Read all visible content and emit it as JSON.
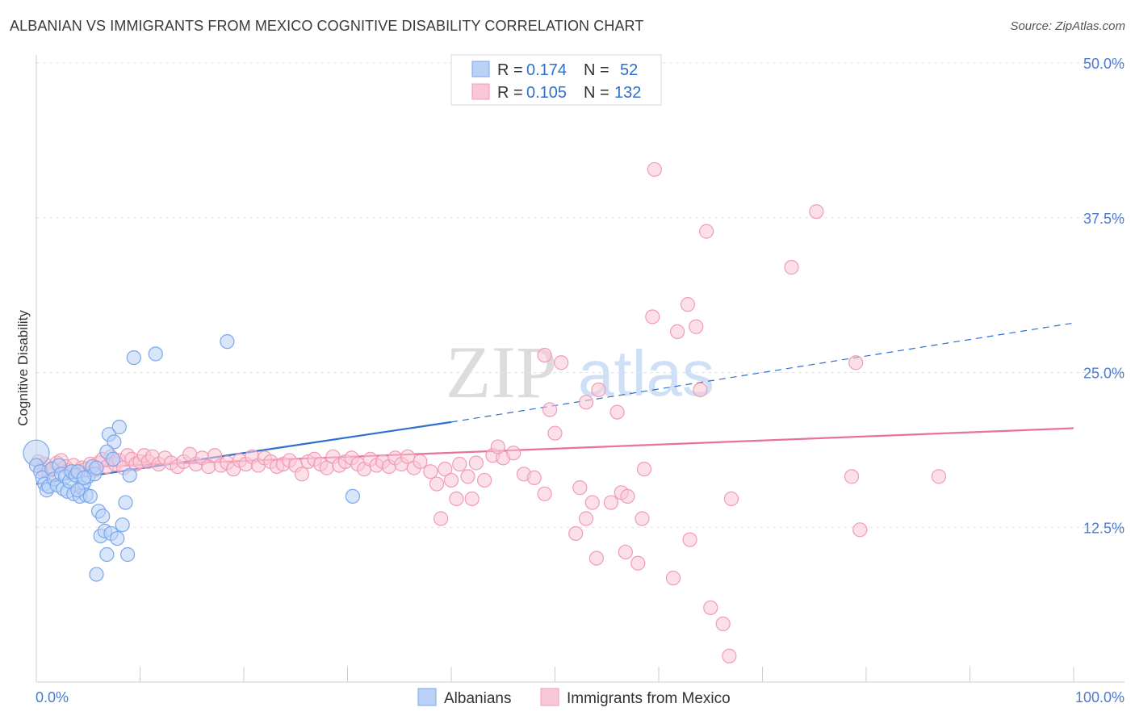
{
  "title": "ALBANIAN VS IMMIGRANTS FROM MEXICO COGNITIVE DISABILITY CORRELATION CHART",
  "source": "Source: ZipAtlas.com",
  "watermark": {
    "zip": "ZIP",
    "atlas": "atlas"
  },
  "chart_data": {
    "type": "scatter",
    "title": "ALBANIAN VS IMMIGRANTS FROM MEXICO COGNITIVE DISABILITY CORRELATION CHART",
    "xlabel": "",
    "ylabel": "Cognitive Disability",
    "xlim": [
      0,
      100
    ],
    "ylim": [
      0,
      50
    ],
    "x_tick_labels": [
      "0.0%",
      "100.0%"
    ],
    "y_ticks": [
      12.5,
      25.0,
      37.5,
      50.0
    ],
    "y_tick_labels": [
      "12.5%",
      "25.0%",
      "37.5%",
      "50.0%"
    ],
    "grid": "horizontal dashed",
    "legend_position": "top-center",
    "legend": [
      {
        "r_label": "R =",
        "r_value": "0.174",
        "n_label": "N =",
        "n_value": "52"
      },
      {
        "r_label": "R =",
        "r_value": "0.105",
        "n_label": "N =",
        "n_value": "132"
      }
    ],
    "series": [
      {
        "name": "Albanians",
        "color": "#7aa7ec",
        "fill": "#b9d1f5",
        "trend": {
          "x0": 0,
          "y0": 16.0,
          "x1": 40,
          "y1": 21.0,
          "dash_to_x": 100,
          "dash_to_y": 29.0,
          "color": "#2f6fce"
        },
        "points": [
          [
            0,
            18.5
          ],
          [
            0,
            17.5
          ],
          [
            0.4,
            17.0
          ],
          [
            0.6,
            16.5
          ],
          [
            0.8,
            16.0
          ],
          [
            1.0,
            15.5
          ],
          [
            1.2,
            15.8
          ],
          [
            1.5,
            17.2
          ],
          [
            1.7,
            16.4
          ],
          [
            2.0,
            15.9
          ],
          [
            2.2,
            17.5
          ],
          [
            2.4,
            16.8
          ],
          [
            2.6,
            15.6
          ],
          [
            2.8,
            16.6
          ],
          [
            3.0,
            15.4
          ],
          [
            3.2,
            16.2
          ],
          [
            3.4,
            17.0
          ],
          [
            3.6,
            15.2
          ],
          [
            3.8,
            16.7
          ],
          [
            4.0,
            17.0
          ],
          [
            4.2,
            15.0
          ],
          [
            4.4,
            15.7
          ],
          [
            4.6,
            16.1
          ],
          [
            4.8,
            15.1
          ],
          [
            5.0,
            16.6
          ],
          [
            5.2,
            15.0
          ],
          [
            5.4,
            17.4
          ],
          [
            5.6,
            16.8
          ],
          [
            5.8,
            17.3
          ],
          [
            4.0,
            15.5
          ],
          [
            4.6,
            16.5
          ],
          [
            7.0,
            20.0
          ],
          [
            7.5,
            19.4
          ],
          [
            8.0,
            20.6
          ],
          [
            6.8,
            18.6
          ],
          [
            7.4,
            18.0
          ],
          [
            9.0,
            16.7
          ],
          [
            6.0,
            13.8
          ],
          [
            6.4,
            13.4
          ],
          [
            6.2,
            11.8
          ],
          [
            6.6,
            12.2
          ],
          [
            7.2,
            12.0
          ],
          [
            5.8,
            8.7
          ],
          [
            6.8,
            10.3
          ],
          [
            7.8,
            11.6
          ],
          [
            8.6,
            14.5
          ],
          [
            8.3,
            12.7
          ],
          [
            8.8,
            10.3
          ],
          [
            9.4,
            26.2
          ],
          [
            11.5,
            26.5
          ],
          [
            18.4,
            27.5
          ],
          [
            30.5,
            15.0
          ]
        ]
      },
      {
        "name": "Immigrants from Mexico",
        "color": "#f19bb6",
        "fill": "#f9c7d6",
        "trend": {
          "x0": 0,
          "y0": 17.2,
          "x1": 100,
          "y1": 20.5,
          "color": "#e8729a"
        },
        "points": [
          [
            0.2,
            17.8
          ],
          [
            0.5,
            17.2
          ],
          [
            0.8,
            17.6
          ],
          [
            1.2,
            17.0
          ],
          [
            1.6,
            17.3
          ],
          [
            2.0,
            17.7
          ],
          [
            2.4,
            17.9
          ],
          [
            2.8,
            17.4
          ],
          [
            3.2,
            17.1
          ],
          [
            3.6,
            17.5
          ],
          [
            4.0,
            17.0
          ],
          [
            4.4,
            17.3
          ],
          [
            4.8,
            17.2
          ],
          [
            5.2,
            17.6
          ],
          [
            5.6,
            17.1
          ],
          [
            6.0,
            17.7
          ],
          [
            6.4,
            18.0
          ],
          [
            6.8,
            17.4
          ],
          [
            7.2,
            18.2
          ],
          [
            7.6,
            17.6
          ],
          [
            8.0,
            17.9
          ],
          [
            8.4,
            17.3
          ],
          [
            8.8,
            18.3
          ],
          [
            9.2,
            18.0
          ],
          [
            9.6,
            17.6
          ],
          [
            10.0,
            17.8
          ],
          [
            10.4,
            18.3
          ],
          [
            10.8,
            17.8
          ],
          [
            11.2,
            18.2
          ],
          [
            11.8,
            17.6
          ],
          [
            12.4,
            18.1
          ],
          [
            13.0,
            17.7
          ],
          [
            13.6,
            17.4
          ],
          [
            14.2,
            17.8
          ],
          [
            14.8,
            18.4
          ],
          [
            15.4,
            17.6
          ],
          [
            16.0,
            18.1
          ],
          [
            16.6,
            17.4
          ],
          [
            17.2,
            18.3
          ],
          [
            17.8,
            17.5
          ],
          [
            18.4,
            17.7
          ],
          [
            19.0,
            17.2
          ],
          [
            19.6,
            17.9
          ],
          [
            20.2,
            17.6
          ],
          [
            20.8,
            18.2
          ],
          [
            21.4,
            17.5
          ],
          [
            22.0,
            18.1
          ],
          [
            22.6,
            17.8
          ],
          [
            23.2,
            17.4
          ],
          [
            23.8,
            17.6
          ],
          [
            24.4,
            17.9
          ],
          [
            25.0,
            17.5
          ],
          [
            25.6,
            16.8
          ],
          [
            26.2,
            17.8
          ],
          [
            26.8,
            18.0
          ],
          [
            27.4,
            17.6
          ],
          [
            28.0,
            17.3
          ],
          [
            28.6,
            18.2
          ],
          [
            29.2,
            17.5
          ],
          [
            29.8,
            17.8
          ],
          [
            30.4,
            18.1
          ],
          [
            31.0,
            17.6
          ],
          [
            31.6,
            17.2
          ],
          [
            32.2,
            18.0
          ],
          [
            32.8,
            17.5
          ],
          [
            33.4,
            17.8
          ],
          [
            34.0,
            17.4
          ],
          [
            34.6,
            18.1
          ],
          [
            35.2,
            17.6
          ],
          [
            35.8,
            18.2
          ],
          [
            36.4,
            17.3
          ],
          [
            37.0,
            17.8
          ],
          [
            38.0,
            17.0
          ],
          [
            38.6,
            16.0
          ],
          [
            39.4,
            17.2
          ],
          [
            40.0,
            16.3
          ],
          [
            40.8,
            17.6
          ],
          [
            41.6,
            16.6
          ],
          [
            42.4,
            17.7
          ],
          [
            43.2,
            16.3
          ],
          [
            44.0,
            18.3
          ],
          [
            45.0,
            18.1
          ],
          [
            46.0,
            18.5
          ],
          [
            47.0,
            16.8
          ],
          [
            48.0,
            16.5
          ],
          [
            49.0,
            15.2
          ],
          [
            50.0,
            20.1
          ],
          [
            39.0,
            13.2
          ],
          [
            40.5,
            14.8
          ],
          [
            42.0,
            14.8
          ],
          [
            44.5,
            19.0
          ],
          [
            49.5,
            22.0
          ],
          [
            49.0,
            26.4
          ],
          [
            50.6,
            25.8
          ],
          [
            53.0,
            22.6
          ],
          [
            54.2,
            23.6
          ],
          [
            53.6,
            14.5
          ],
          [
            52.4,
            15.7
          ],
          [
            52.0,
            12.0
          ],
          [
            53.0,
            13.2
          ],
          [
            54.0,
            10.0
          ],
          [
            56.0,
            21.8
          ],
          [
            55.4,
            14.5
          ],
          [
            56.4,
            15.3
          ],
          [
            57.0,
            15.0
          ],
          [
            56.8,
            10.5
          ],
          [
            58.0,
            9.6
          ],
          [
            58.4,
            13.2
          ],
          [
            58.6,
            17.2
          ],
          [
            59.6,
            41.4
          ],
          [
            59.4,
            29.5
          ],
          [
            61.8,
            28.3
          ],
          [
            62.8,
            30.5
          ],
          [
            63.6,
            28.7
          ],
          [
            64.0,
            23.6
          ],
          [
            64.6,
            36.4
          ],
          [
            61.4,
            8.4
          ],
          [
            63.0,
            11.5
          ],
          [
            65.0,
            6.0
          ],
          [
            66.2,
            4.7
          ],
          [
            66.8,
            2.1
          ],
          [
            67.0,
            14.8
          ],
          [
            72.8,
            33.5
          ],
          [
            75.2,
            38.0
          ],
          [
            79.0,
            25.8
          ],
          [
            78.6,
            16.6
          ],
          [
            79.4,
            12.3
          ],
          [
            87.0,
            16.6
          ]
        ]
      }
    ]
  }
}
